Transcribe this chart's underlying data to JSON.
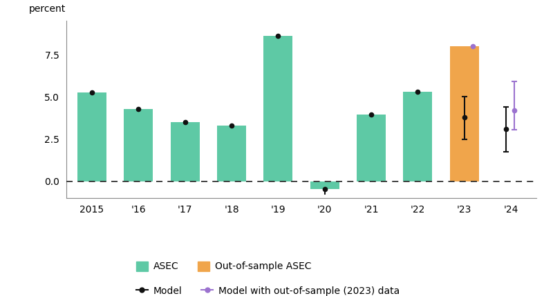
{
  "years": [
    2015,
    2016,
    2017,
    2018,
    2019,
    2020,
    2021,
    2022,
    2023,
    2024
  ],
  "year_labels": [
    "2015",
    "'16",
    "'17",
    "'18",
    "'19",
    "'20",
    "'21",
    "'22",
    "'23",
    "'24"
  ],
  "bar_values": [
    5.25,
    4.3,
    3.5,
    3.3,
    8.6,
    -0.45,
    3.95,
    5.3,
    8.0,
    null
  ],
  "bar_colors": [
    "#5ec9a5",
    "#5ec9a5",
    "#5ec9a5",
    "#5ec9a5",
    "#5ec9a5",
    "#5ec9a5",
    "#5ec9a5",
    "#5ec9a5",
    "#f0a54b",
    null
  ],
  "model_points": [
    5.25,
    4.3,
    3.5,
    3.3,
    8.6,
    -0.45,
    3.95,
    5.3,
    3.8
  ],
  "model_ci_low": [
    5.25,
    4.3,
    3.5,
    3.3,
    8.6,
    -0.45,
    3.95,
    5.3,
    2.5
  ],
  "model_ci_high": [
    5.25,
    4.3,
    3.5,
    3.3,
    8.6,
    -0.45,
    3.95,
    5.3,
    5.0
  ],
  "model2024_point": 3.1,
  "model2024_ci_low": 1.75,
  "model2024_ci_high": 4.4,
  "oos_purple_2023_point": 8.0,
  "oos_purple_2024_point": 4.2,
  "oos_purple_2024_ci_low": 3.05,
  "oos_purple_2024_ci_high": 5.9,
  "ylim": [
    -1.0,
    9.5
  ],
  "ylabel": "percent",
  "bar_green": "#5ec9a5",
  "bar_orange": "#f0a54b",
  "model_color": "#111111",
  "model_oos_color": "#9b72cf",
  "spine_color": "#888888"
}
